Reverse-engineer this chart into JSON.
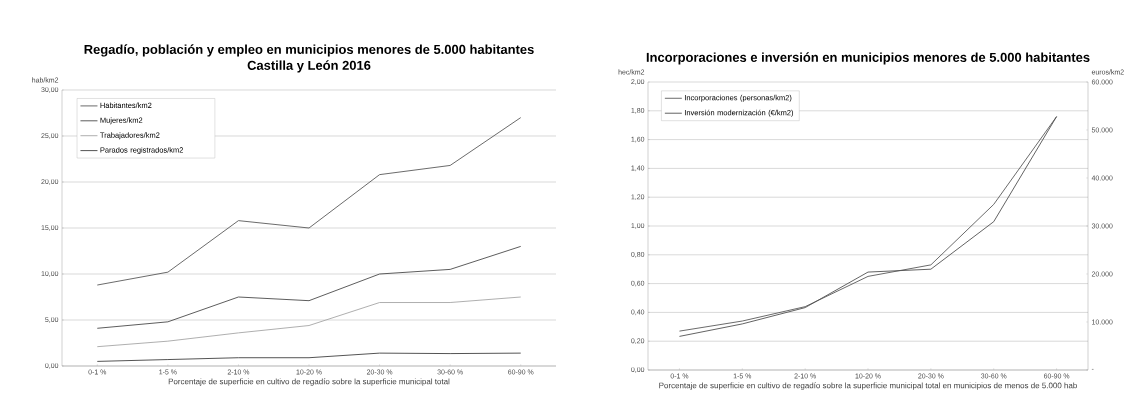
{
  "chart_data": [
    {
      "type": "line",
      "title": "Regadío, población y empleo en municipios menores de 5.000 habitantes",
      "subtitle": "Castilla y León 2016",
      "xlabel": "Porcentaje de superficie en cultivo de regadío sobre la superficie municipal  total",
      "ylabel": "hab/km2",
      "categories": [
        "0-1 %",
        "1-5 %",
        "2-10 %",
        "10-20 %",
        "20-30 %",
        "30-60 %",
        "60-90 %"
      ],
      "series": [
        {
          "name": "Habitantes/km2",
          "color": "#595959",
          "values": [
            8.8,
            10.2,
            15.8,
            15.0,
            20.8,
            21.8,
            27.0
          ]
        },
        {
          "name": "Mujeres/km2",
          "color": "#4a4a4a",
          "values": [
            4.1,
            4.8,
            7.5,
            7.1,
            10.0,
            10.5,
            13.0
          ]
        },
        {
          "name": "Trabajadores/km2",
          "color": "#a6a6a6",
          "values": [
            2.1,
            2.7,
            3.6,
            4.4,
            6.9,
            6.9,
            7.5
          ]
        },
        {
          "name": "Parados registrados/km2",
          "color": "#404040",
          "values": [
            0.5,
            0.7,
            0.9,
            0.9,
            1.4,
            1.35,
            1.4
          ]
        }
      ],
      "ylim": [
        0,
        30
      ],
      "yticks": [
        {
          "value": 0,
          "label": "0,00"
        },
        {
          "value": 5,
          "label": "5,00"
        },
        {
          "value": 10,
          "label": "10,00"
        },
        {
          "value": 15,
          "label": "15,00"
        },
        {
          "value": 20,
          "label": "20,00"
        },
        {
          "value": 25,
          "label": "25,00"
        },
        {
          "value": 30,
          "label": "30,00"
        }
      ],
      "grid": "y",
      "legend": "top left",
      "line_style": "solid"
    },
    {
      "type": "line",
      "title": "Incorporaciones e inversión en municipios menores de 5.000 habitantes",
      "xlabel": "Porcentaje de superficie en cultivo de regadío sobre la superficie municipal  total en municipios de menos de 5.000 hab",
      "ylabel": "hec/km2",
      "y2label": "euros/km2",
      "categories": [
        "0-1 %",
        "1-5 %",
        "2-10 %",
        "10-20 %",
        "20-30 %",
        "30-60 %",
        "60-90 %"
      ],
      "series": [
        {
          "name": "Incorporaciones (personas/km2)",
          "color": "#5a5a5a",
          "values": [
            0.27,
            0.34,
            0.44,
            0.65,
            0.73,
            1.15,
            1.76
          ]
        },
        {
          "name": "Inversión modernización (€/km2)",
          "color": "#505050",
          "axis": "y2",
          "values": [
            7000,
            9600,
            13000,
            20400,
            21000,
            30900,
            52800
          ]
        }
      ],
      "ylim": [
        0,
        2
      ],
      "yticks": [
        {
          "value": 0,
          "label": "0,00"
        },
        {
          "value": 0.2,
          "label": "0,20"
        },
        {
          "value": 0.4,
          "label": "0,40"
        },
        {
          "value": 0.6,
          "label": "0,60"
        },
        {
          "value": 0.8,
          "label": "0,80"
        },
        {
          "value": 1.0,
          "label": "1,00"
        },
        {
          "value": 1.2,
          "label": "1,20"
        },
        {
          "value": 1.4,
          "label": "1,40"
        },
        {
          "value": 1.6,
          "label": "1,60"
        },
        {
          "value": 1.8,
          "label": "1,80"
        },
        {
          "value": 2.0,
          "label": "2,00"
        }
      ],
      "y2lim": [
        0,
        60000
      ],
      "y2ticks": [
        {
          "value": 0,
          "label": "-"
        },
        {
          "value": 10000,
          "label": "10.000"
        },
        {
          "value": 20000,
          "label": "20.000"
        },
        {
          "value": 30000,
          "label": "30.000"
        },
        {
          "value": 40000,
          "label": "40.000"
        },
        {
          "value": 50000,
          "label": "50.000"
        },
        {
          "value": 60000,
          "label": "60.000"
        }
      ],
      "grid": "y",
      "legend": "top left",
      "line_style": "solid"
    }
  ]
}
